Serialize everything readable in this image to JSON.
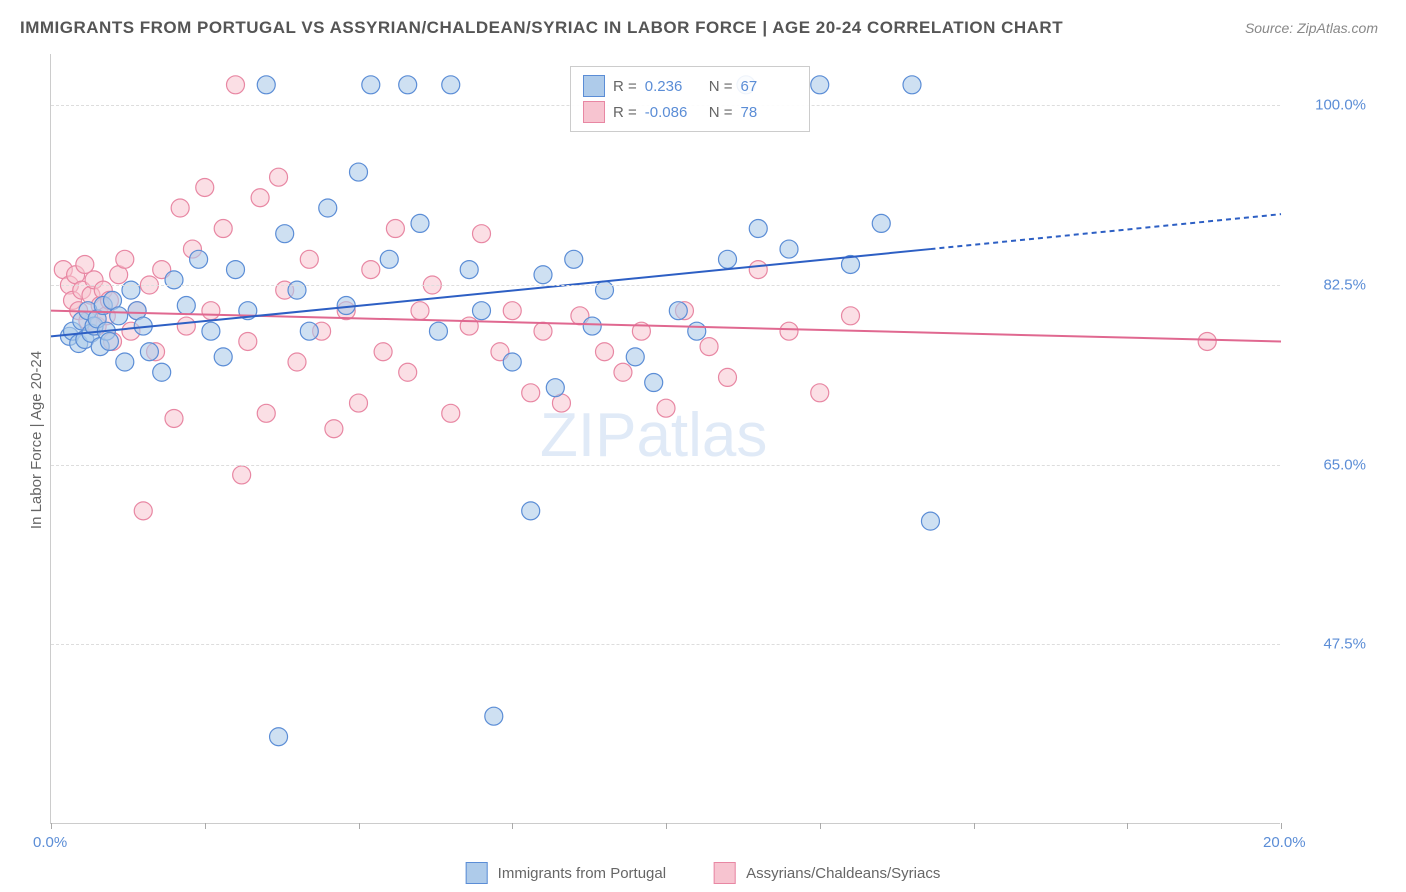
{
  "title": "IMMIGRANTS FROM PORTUGAL VS ASSYRIAN/CHALDEAN/SYRIAC IN LABOR FORCE | AGE 20-24 CORRELATION CHART",
  "source": "Source: ZipAtlas.com",
  "y_axis_title": "In Labor Force | Age 20-24",
  "watermark": "ZIPatlas",
  "chart": {
    "type": "scatter",
    "xlim": [
      0,
      20
    ],
    "ylim": [
      30,
      105
    ],
    "x_ticks": [
      0,
      2.5,
      5,
      7.5,
      10,
      12.5,
      15,
      17.5,
      20
    ],
    "x_tick_labels": {
      "0": "0.0%",
      "20": "20.0%"
    },
    "y_ticks": [
      47.5,
      65.0,
      82.5,
      100.0
    ],
    "y_tick_labels": [
      "47.5%",
      "65.0%",
      "82.5%",
      "100.0%"
    ],
    "grid_color": "#dddddd",
    "background": "#ffffff",
    "series": {
      "blue": {
        "label": "Immigrants from Portugal",
        "fill": "#aecbea",
        "stroke": "#5b8dd6",
        "opacity": 0.6,
        "marker_r": 9,
        "R": "0.236",
        "N": "67",
        "trend": {
          "x1": 0,
          "y1": 77.5,
          "x2": 14.3,
          "y2": 86.0,
          "extend_x2": 20,
          "extend_y2": 89.4,
          "color": "#2d5fc4",
          "width": 2
        },
        "points": [
          [
            0.3,
            77.5
          ],
          [
            0.35,
            78.0
          ],
          [
            0.45,
            76.8
          ],
          [
            0.5,
            79.0
          ],
          [
            0.55,
            77.2
          ],
          [
            0.6,
            80.0
          ],
          [
            0.65,
            77.8
          ],
          [
            0.7,
            78.5
          ],
          [
            0.75,
            79.2
          ],
          [
            0.8,
            76.5
          ],
          [
            0.85,
            80.5
          ],
          [
            0.9,
            78.0
          ],
          [
            0.95,
            77.0
          ],
          [
            1.0,
            81.0
          ],
          [
            1.1,
            79.5
          ],
          [
            1.2,
            75.0
          ],
          [
            1.3,
            82.0
          ],
          [
            1.4,
            80.0
          ],
          [
            1.5,
            78.5
          ],
          [
            1.6,
            76.0
          ],
          [
            1.8,
            74.0
          ],
          [
            2.0,
            83.0
          ],
          [
            2.2,
            80.5
          ],
          [
            2.4,
            85.0
          ],
          [
            2.6,
            78.0
          ],
          [
            2.8,
            75.5
          ],
          [
            3.0,
            84.0
          ],
          [
            3.2,
            80.0
          ],
          [
            3.5,
            102.0
          ],
          [
            3.7,
            38.5
          ],
          [
            3.8,
            87.5
          ],
          [
            4.0,
            82.0
          ],
          [
            4.2,
            78.0
          ],
          [
            4.5,
            90.0
          ],
          [
            4.8,
            80.5
          ],
          [
            5.0,
            93.5
          ],
          [
            5.2,
            102.0
          ],
          [
            5.5,
            85.0
          ],
          [
            5.8,
            102.0
          ],
          [
            6.0,
            88.5
          ],
          [
            6.3,
            78.0
          ],
          [
            6.5,
            102.0
          ],
          [
            6.8,
            84.0
          ],
          [
            7.0,
            80.0
          ],
          [
            7.2,
            40.5
          ],
          [
            7.5,
            75.0
          ],
          [
            7.8,
            60.5
          ],
          [
            8.0,
            83.5
          ],
          [
            8.2,
            72.5
          ],
          [
            8.5,
            85.0
          ],
          [
            8.8,
            78.5
          ],
          [
            9.0,
            82.0
          ],
          [
            9.5,
            75.5
          ],
          [
            9.8,
            73.0
          ],
          [
            10.2,
            80.0
          ],
          [
            10.5,
            78.0
          ],
          [
            11.0,
            85.0
          ],
          [
            11.3,
            102.0
          ],
          [
            11.5,
            88.0
          ],
          [
            12.0,
            86.0
          ],
          [
            12.5,
            102.0
          ],
          [
            13.0,
            84.5
          ],
          [
            13.5,
            88.5
          ],
          [
            14.0,
            102.0
          ],
          [
            14.3,
            59.5
          ]
        ]
      },
      "pink": {
        "label": "Assyrians/Chaldeans/Syriacs",
        "fill": "#f7c4d0",
        "stroke": "#e887a3",
        "opacity": 0.55,
        "marker_r": 9,
        "R": "-0.086",
        "N": "78",
        "trend": {
          "x1": 0,
          "y1": 80.0,
          "x2": 20,
          "y2": 77.0,
          "color": "#e06890",
          "width": 2
        },
        "points": [
          [
            0.2,
            84.0
          ],
          [
            0.3,
            82.5
          ],
          [
            0.35,
            81.0
          ],
          [
            0.4,
            83.5
          ],
          [
            0.45,
            80.0
          ],
          [
            0.5,
            82.0
          ],
          [
            0.55,
            84.5
          ],
          [
            0.6,
            79.0
          ],
          [
            0.65,
            81.5
          ],
          [
            0.7,
            83.0
          ],
          [
            0.75,
            78.5
          ],
          [
            0.8,
            80.5
          ],
          [
            0.85,
            82.0
          ],
          [
            0.9,
            79.5
          ],
          [
            0.95,
            81.0
          ],
          [
            1.0,
            77.0
          ],
          [
            1.1,
            83.5
          ],
          [
            1.2,
            85.0
          ],
          [
            1.3,
            78.0
          ],
          [
            1.4,
            80.0
          ],
          [
            1.5,
            60.5
          ],
          [
            1.6,
            82.5
          ],
          [
            1.7,
            76.0
          ],
          [
            1.8,
            84.0
          ],
          [
            2.0,
            69.5
          ],
          [
            2.1,
            90.0
          ],
          [
            2.2,
            78.5
          ],
          [
            2.3,
            86.0
          ],
          [
            2.5,
            92.0
          ],
          [
            2.6,
            80.0
          ],
          [
            2.8,
            88.0
          ],
          [
            3.0,
            102.0
          ],
          [
            3.1,
            64.0
          ],
          [
            3.2,
            77.0
          ],
          [
            3.4,
            91.0
          ],
          [
            3.5,
            70.0
          ],
          [
            3.7,
            93.0
          ],
          [
            3.8,
            82.0
          ],
          [
            4.0,
            75.0
          ],
          [
            4.2,
            85.0
          ],
          [
            4.4,
            78.0
          ],
          [
            4.6,
            68.5
          ],
          [
            4.8,
            80.0
          ],
          [
            5.0,
            71.0
          ],
          [
            5.2,
            84.0
          ],
          [
            5.4,
            76.0
          ],
          [
            5.6,
            88.0
          ],
          [
            5.8,
            74.0
          ],
          [
            6.0,
            80.0
          ],
          [
            6.2,
            82.5
          ],
          [
            6.5,
            70.0
          ],
          [
            6.8,
            78.5
          ],
          [
            7.0,
            87.5
          ],
          [
            7.3,
            76.0
          ],
          [
            7.5,
            80.0
          ],
          [
            7.8,
            72.0
          ],
          [
            8.0,
            78.0
          ],
          [
            8.3,
            71.0
          ],
          [
            8.6,
            79.5
          ],
          [
            9.0,
            76.0
          ],
          [
            9.3,
            74.0
          ],
          [
            9.6,
            78.0
          ],
          [
            10.0,
            70.5
          ],
          [
            10.3,
            80.0
          ],
          [
            10.7,
            76.5
          ],
          [
            11.0,
            73.5
          ],
          [
            11.5,
            84.0
          ],
          [
            12.0,
            78.0
          ],
          [
            12.5,
            72.0
          ],
          [
            13.0,
            79.5
          ],
          [
            18.8,
            77.0
          ]
        ]
      }
    }
  },
  "legend_stats_labels": {
    "R": "R =",
    "N": "N ="
  }
}
